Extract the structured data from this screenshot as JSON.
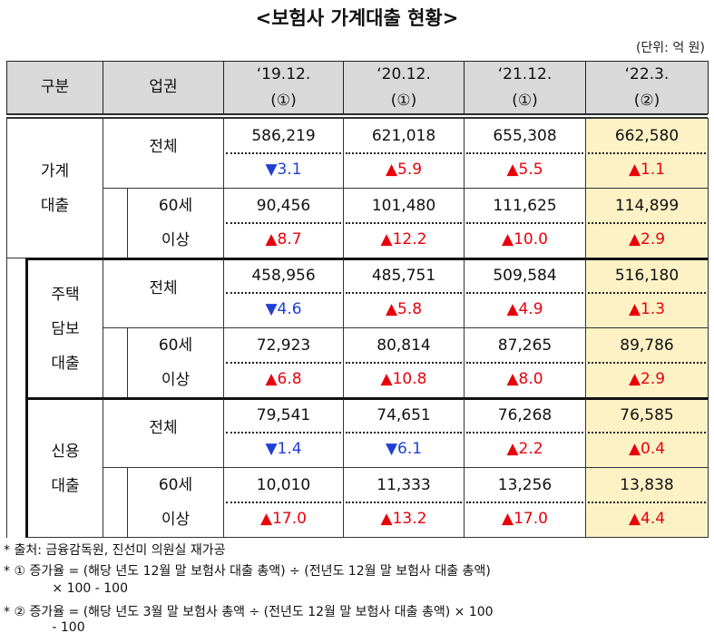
{
  "title": "<보험사 가계대출 현황>",
  "unit": "(단위: 억 원)",
  "header": {
    "category": "구분",
    "segment": "업권",
    "periods": [
      {
        "date": "‘19.12.",
        "note": "(①)"
      },
      {
        "date": "‘20.12.",
        "note": "(①)"
      },
      {
        "date": "‘21.12.",
        "note": "(①)"
      },
      {
        "date": "‘22.3.",
        "note": "(②)"
      }
    ]
  },
  "colors": {
    "up": "#e8000b",
    "down": "#1f3fd6",
    "highlight": "#fdf2c5",
    "header": "#d9d9d9"
  },
  "groups": [
    {
      "label": "가계\n대출",
      "rows": [
        {
          "segment": "전체",
          "values": [
            "586,219",
            "621,018",
            "655,308",
            "662,580"
          ],
          "changes": [
            {
              "dir": "down",
              "text": "▼3.1"
            },
            {
              "dir": "up",
              "text": "▲5.9"
            },
            {
              "dir": "up",
              "text": "▲5.5"
            },
            {
              "dir": "up",
              "text": "▲1.1"
            }
          ]
        },
        {
          "segment": "60세\n이상",
          "values": [
            "90,456",
            "101,480",
            "111,625",
            "114,899"
          ],
          "changes": [
            {
              "dir": "up",
              "text": "▲8.7"
            },
            {
              "dir": "up",
              "text": "▲12.2"
            },
            {
              "dir": "up",
              "text": "▲10.0"
            },
            {
              "dir": "up",
              "text": "▲2.9"
            }
          ]
        }
      ]
    },
    {
      "label": "주택\n담보\n대출",
      "rows": [
        {
          "segment": "전체",
          "values": [
            "458,956",
            "485,751",
            "509,584",
            "516,180"
          ],
          "changes": [
            {
              "dir": "down",
              "text": "▼4.6"
            },
            {
              "dir": "up",
              "text": "▲5.8"
            },
            {
              "dir": "up",
              "text": "▲4.9"
            },
            {
              "dir": "up",
              "text": "▲1.3"
            }
          ]
        },
        {
          "segment": "60세\n이상",
          "values": [
            "72,923",
            "80,814",
            "87,265",
            "89,786"
          ],
          "changes": [
            {
              "dir": "up",
              "text": "▲6.8"
            },
            {
              "dir": "up",
              "text": "▲10.8"
            },
            {
              "dir": "up",
              "text": "▲8.0"
            },
            {
              "dir": "up",
              "text": "▲2.9"
            }
          ]
        }
      ]
    },
    {
      "label": "신용\n대출",
      "rows": [
        {
          "segment": "전체",
          "values": [
            "79,541",
            "74,651",
            "76,268",
            "76,585"
          ],
          "changes": [
            {
              "dir": "down",
              "text": "▼1.4"
            },
            {
              "dir": "down",
              "text": "▼6.1"
            },
            {
              "dir": "up",
              "text": "▲2.2"
            },
            {
              "dir": "up",
              "text": "▲0.4"
            }
          ]
        },
        {
          "segment": "60세\n이상",
          "values": [
            "10,010",
            "11,333",
            "13,256",
            "13,838"
          ],
          "changes": [
            {
              "dir": "up",
              "text": "▲17.0"
            },
            {
              "dir": "up",
              "text": "▲13.2"
            },
            {
              "dir": "up",
              "text": "▲17.0"
            },
            {
              "dir": "up",
              "text": "▲4.4"
            }
          ]
        }
      ]
    }
  ],
  "notes": [
    "* 출처: 금융감독원, 진선미 의원실 재가공",
    "* ① 증가율 = (해당 년도 12월 말 보험사 대출 총액) ÷ (전년도 12월 말 보험사 대출 총액)",
    "            × 100 - 100",
    "* ② 증가율 = (해당 년도 3월 말 보험사 총액 ÷ (전년도 12월 말 보험사 대출 총액) × 100",
    "            - 100"
  ]
}
